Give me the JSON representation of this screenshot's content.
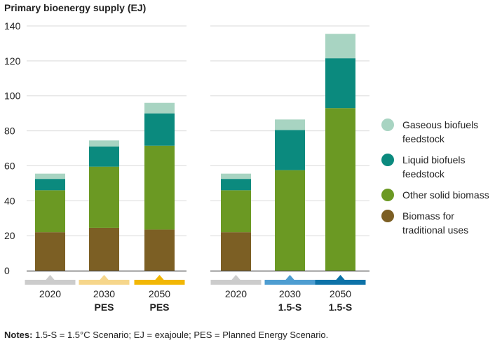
{
  "title": "Primary bioenergy supply (EJ)",
  "chart_data": {
    "type": "bar",
    "stacked": true,
    "ylabel": "EJ",
    "ylim": [
      0,
      140
    ],
    "yticks": [
      0,
      20,
      40,
      60,
      80,
      100,
      120,
      140
    ],
    "groups": [
      {
        "name": "Planned Energy Scenario",
        "categories": [
          {
            "label": "2020",
            "sub": "",
            "marker_color": "#cccccc"
          },
          {
            "label": "2030",
            "sub": "PES",
            "marker_color": "#f6d68b"
          },
          {
            "label": "2050",
            "sub": "PES",
            "marker_color": "#f2b705"
          }
        ]
      },
      {
        "name": "1.5°C Scenario",
        "categories": [
          {
            "label": "2020",
            "sub": "",
            "marker_color": "#cccccc"
          },
          {
            "label": "2030",
            "sub": "1.5-S",
            "marker_color": "#4e9dd1"
          },
          {
            "label": "2050",
            "sub": "1.5-S",
            "marker_color": "#0d72a8"
          }
        ]
      }
    ],
    "series": [
      {
        "name": "Biomass for traditional uses",
        "color": "#7c5f24",
        "values": [
          22,
          24.5,
          23.5,
          22,
          0,
          0
        ]
      },
      {
        "name": "Other solid biomass",
        "color": "#6b9923",
        "values": [
          24,
          35,
          48,
          24,
          57.5,
          93
        ]
      },
      {
        "name": "Liquid biofuels feedstock",
        "color": "#0b8a7e",
        "values": [
          6.5,
          11.5,
          18.5,
          6.5,
          23,
          28.5
        ]
      },
      {
        "name": "Gaseous biofuels feedstock",
        "color": "#a8d4c2",
        "values": [
          3,
          3.5,
          6,
          3,
          6,
          14
        ]
      }
    ],
    "legend": [
      {
        "label": "Gaseous biofuels feedstock",
        "color": "#a8d4c2"
      },
      {
        "label": "Liquid biofuels feedstock",
        "color": "#0b8a7e"
      },
      {
        "label": "Other solid biomass",
        "color": "#6b9923"
      },
      {
        "label": "Biomass for traditional uses",
        "color": "#7c5f24"
      }
    ],
    "legend_position": "right"
  },
  "notes": {
    "label": "Notes:",
    "text": " 1.5-S = 1.5°C Scenario; EJ = exajoule; PES = Planned Energy Scenario."
  }
}
